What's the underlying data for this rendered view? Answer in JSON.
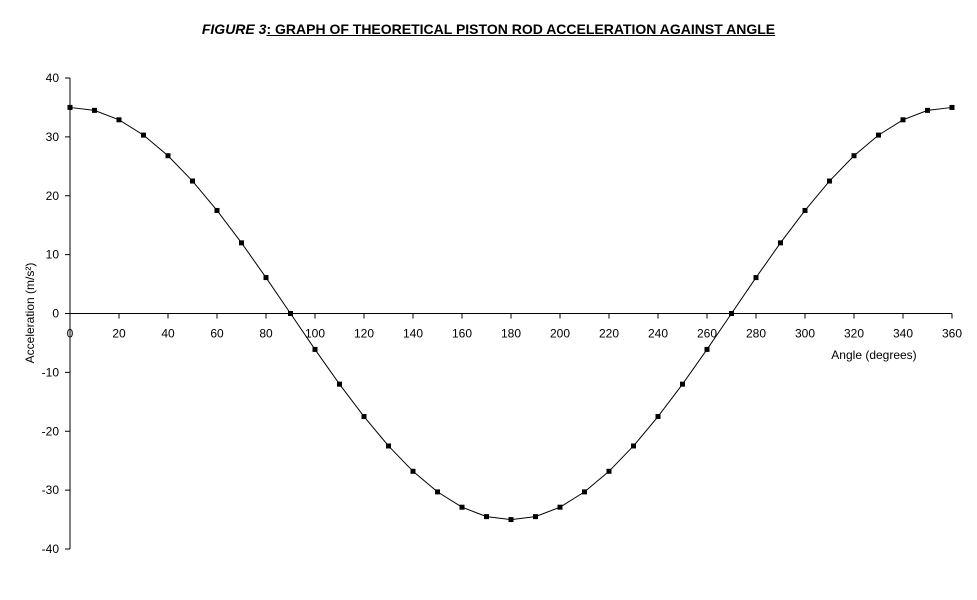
{
  "title": {
    "prefix": "FIGURE 3",
    "main": ": GRAPH OF THEORETICAL PISTON ROD ACCELERATION AGAINST ANGLE"
  },
  "chart_data": {
    "type": "line",
    "title": "FIGURE 3: GRAPH OF THEORETICAL PISTON ROD ACCELERATION AGAINST ANGLE",
    "xlabel": "Angle (degrees)",
    "ylabel": "Acceleration (m/s²)",
    "xlim": [
      0,
      360
    ],
    "ylim": [
      -40,
      40
    ],
    "x_ticks": [
      0,
      20,
      40,
      60,
      80,
      100,
      120,
      140,
      160,
      180,
      200,
      220,
      240,
      260,
      280,
      300,
      320,
      340,
      360
    ],
    "y_ticks": [
      40,
      30,
      20,
      10,
      0,
      -10,
      -20,
      -30,
      -40
    ],
    "grid": false,
    "legend": "none",
    "series": [
      {
        "marker": "square",
        "color": "#000000",
        "x": [
          0,
          10,
          20,
          30,
          40,
          50,
          60,
          70,
          80,
          90,
          100,
          110,
          120,
          130,
          140,
          150,
          160,
          170,
          180,
          190,
          200,
          210,
          220,
          230,
          240,
          250,
          260,
          270,
          280,
          290,
          300,
          310,
          320,
          330,
          340,
          350,
          360
        ],
        "y": [
          35.0,
          34.5,
          32.9,
          30.3,
          26.8,
          22.5,
          17.5,
          12.0,
          6.1,
          0,
          -6.1,
          -12.0,
          -17.5,
          -22.5,
          -26.8,
          -30.3,
          -32.9,
          -34.5,
          -35.0,
          -34.5,
          -32.9,
          -30.3,
          -26.8,
          -22.5,
          -17.5,
          -12.0,
          -6.1,
          0,
          6.1,
          12.0,
          17.5,
          22.5,
          26.8,
          30.3,
          32.9,
          34.5,
          35.0
        ]
      }
    ]
  }
}
